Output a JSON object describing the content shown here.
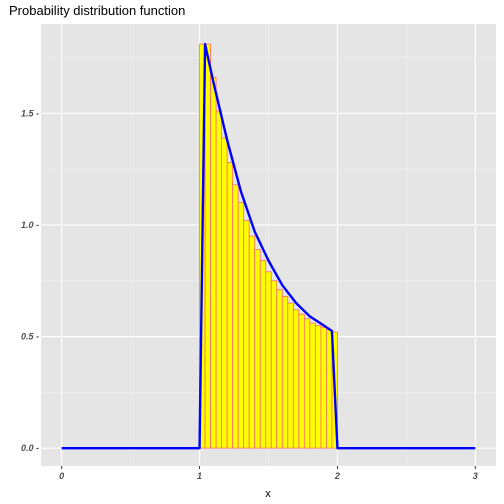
{
  "chart_data": {
    "type": "bar",
    "title": "Probability distribution function",
    "xlabel": "x",
    "ylabel": "",
    "xlim": [
      -0.15,
      3.15
    ],
    "ylim": [
      -0.08,
      1.9
    ],
    "x_ticks": [
      0,
      1,
      2,
      3
    ],
    "x_tick_labels": [
      "0",
      "1",
      "2",
      "3"
    ],
    "y_ticks": [
      0.0,
      0.5,
      1.0,
      1.5
    ],
    "y_tick_labels": [
      "0.0 -",
      "0.5 -",
      "1.0 -",
      "1.5 -"
    ],
    "grid": true,
    "panel_background": "#e5e5e5",
    "histogram": {
      "bin_width": 0.04,
      "fill_color": "#ffff00",
      "outline_color": "#ff6b6b",
      "bins": [
        {
          "x": 1.02,
          "y": 1.81
        },
        {
          "x": 1.06,
          "y": 1.81
        },
        {
          "x": 1.1,
          "y": 1.66
        },
        {
          "x": 1.14,
          "y": 1.51
        },
        {
          "x": 1.18,
          "y": 1.39
        },
        {
          "x": 1.22,
          "y": 1.28
        },
        {
          "x": 1.26,
          "y": 1.18
        },
        {
          "x": 1.3,
          "y": 1.1
        },
        {
          "x": 1.34,
          "y": 1.02
        },
        {
          "x": 1.38,
          "y": 0.95
        },
        {
          "x": 1.42,
          "y": 0.89
        },
        {
          "x": 1.46,
          "y": 0.84
        },
        {
          "x": 1.5,
          "y": 0.79
        },
        {
          "x": 1.54,
          "y": 0.75
        },
        {
          "x": 1.58,
          "y": 0.71
        },
        {
          "x": 1.62,
          "y": 0.68
        },
        {
          "x": 1.66,
          "y": 0.65
        },
        {
          "x": 1.7,
          "y": 0.62
        },
        {
          "x": 1.74,
          "y": 0.6
        },
        {
          "x": 1.78,
          "y": 0.58
        },
        {
          "x": 1.82,
          "y": 0.56
        },
        {
          "x": 1.86,
          "y": 0.55
        },
        {
          "x": 1.9,
          "y": 0.54
        },
        {
          "x": 1.94,
          "y": 0.53
        },
        {
          "x": 1.98,
          "y": 0.52
        }
      ]
    },
    "series": [
      {
        "type": "line",
        "color": "#0000ff",
        "x": [
          0,
          1.0,
          1.04,
          1.1,
          1.2,
          1.3,
          1.4,
          1.5,
          1.6,
          1.7,
          1.8,
          1.9,
          1.96,
          2.0,
          3.0
        ],
        "y": [
          0,
          0,
          1.81,
          1.64,
          1.38,
          1.15,
          0.97,
          0.84,
          0.73,
          0.65,
          0.59,
          0.55,
          0.525,
          0,
          0
        ]
      }
    ]
  }
}
